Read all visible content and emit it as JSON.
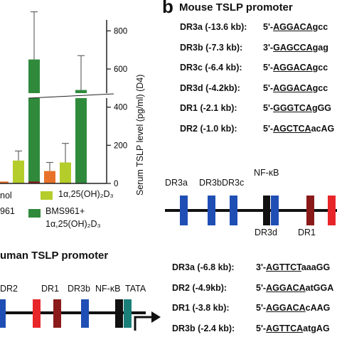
{
  "panel_b": {
    "letter": "b",
    "title": "Mouse TSLP promoter",
    "rows": [
      {
        "label": "DR3a (-13.6 kb):",
        "prefix": "5'-",
        "site": "AGGACA",
        "tail": "gcc",
        "tail_style": "AGGA"
      },
      {
        "label": "DR3b (-7.3 kb):",
        "prefix": "3'-",
        "site": "GAGCCA",
        "tail": "gag"
      },
      {
        "label": "DR3c (-6.4 kb):",
        "prefix": "5'-",
        "site": "AGGACA",
        "tail": "gcc"
      },
      {
        "label": "DR3d (-4.2kb):",
        "prefix": "5'-",
        "site": "AGGACA",
        "tail": "gcc"
      },
      {
        "label": "DR1 (-2.1 kb):",
        "prefix": "5'-",
        "site": "GGGTCA",
        "tail": "gGG"
      },
      {
        "label": "DR2 (-1.0 kb):",
        "prefix": "5'-",
        "site": "AGCTCA",
        "tail": "acAG"
      }
    ],
    "map_labels": {
      "dr3a": "DR3a",
      "dr3b": "DR3b",
      "dr3c": "DR3c",
      "nfkb": "NF-κB",
      "dr3d": "DR3d",
      "dr1": "DR1"
    }
  },
  "panel_c": {
    "title": "uman TSLP promoter",
    "map_labels": {
      "dr2": "DR2",
      "dr1": "DR1",
      "dr3b": "DR3b",
      "nfkb": "NF-κB",
      "tata": "TATA"
    },
    "rows": [
      {
        "label": "DR3a (-6.8 kb):",
        "prefix": "3'-",
        "site": "AGTTCT",
        "tail": "aaaGG"
      },
      {
        "label": "DR2 (-4.9kb):",
        "prefix": "5'-",
        "site": "AGGACA",
        "tail": "atGGA"
      },
      {
        "label": "DR1 (-3.8 kb):",
        "prefix": "5'-",
        "site": "AGGACA",
        "tail": "cAAG"
      },
      {
        "label": "DR3b (-2.4 kb):",
        "prefix": "5'-",
        "site": "AGTTCA",
        "tail": "atgAG"
      }
    ]
  },
  "panel_a": {
    "ylabel": "Serum TSLP level (pg/ml) (D4)",
    "legend": {
      "item1": "nol",
      "item2": "961",
      "item3_main": "1α,25(OH)₂D₃",
      "item4_line1": "BMS961+",
      "item4_line2": "1α,25(OH)₂D₃"
    },
    "colors": {
      "vehicle": "#e8722a",
      "vd3": "#b5cd2a",
      "combo": "#2f8a3c",
      "dark": "#8b1a1a"
    }
  },
  "chart_data": {
    "type": "bar",
    "ylabel": "Serum TSLP level (pg/ml) (D4)",
    "yticks": [
      0,
      200,
      400,
      600,
      800
    ],
    "ylim": [
      0,
      850
    ],
    "axis_break": true,
    "groups": [
      {
        "bars": [
          {
            "color": "#e8722a",
            "value": 10,
            "err": 0
          },
          {
            "color": "#b5cd2a",
            "value": 120,
            "err": 50
          },
          {
            "color": "#2f8a3c",
            "value": 650,
            "err": 250
          }
        ]
      },
      {
        "bars": [
          {
            "color": "#8b1a1a",
            "value": 10,
            "err": 0
          },
          {
            "color": "#e8722a",
            "value": 65,
            "err": 45
          },
          {
            "color": "#b5cd2a",
            "value": 110,
            "err": 100
          },
          {
            "color": "#2f8a3c",
            "value": 490,
            "err": 180
          }
        ]
      }
    ]
  }
}
